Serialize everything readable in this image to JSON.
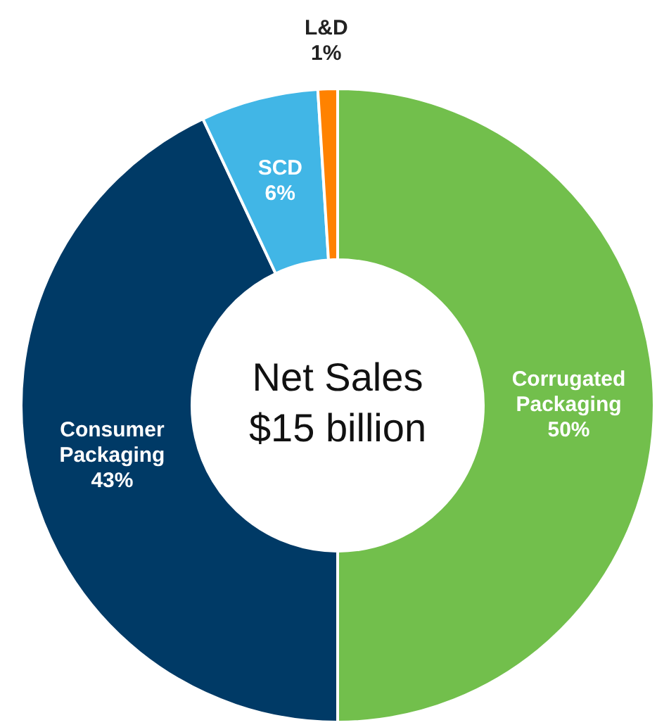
{
  "chart_data": {
    "type": "donut",
    "categories": [
      "Corrugated Packaging",
      "Consumer Packaging",
      "SCD",
      "L&D"
    ],
    "values": [
      50,
      43,
      6,
      1
    ],
    "colors": [
      "#72bf4c",
      "#003a66",
      "#41b6e6",
      "#ff8200"
    ],
    "value_labels": [
      "50%",
      "43%",
      "6%",
      "1%"
    ],
    "annotations": [
      "Net Sales",
      "$15 billion"
    ],
    "legend": false
  }
}
